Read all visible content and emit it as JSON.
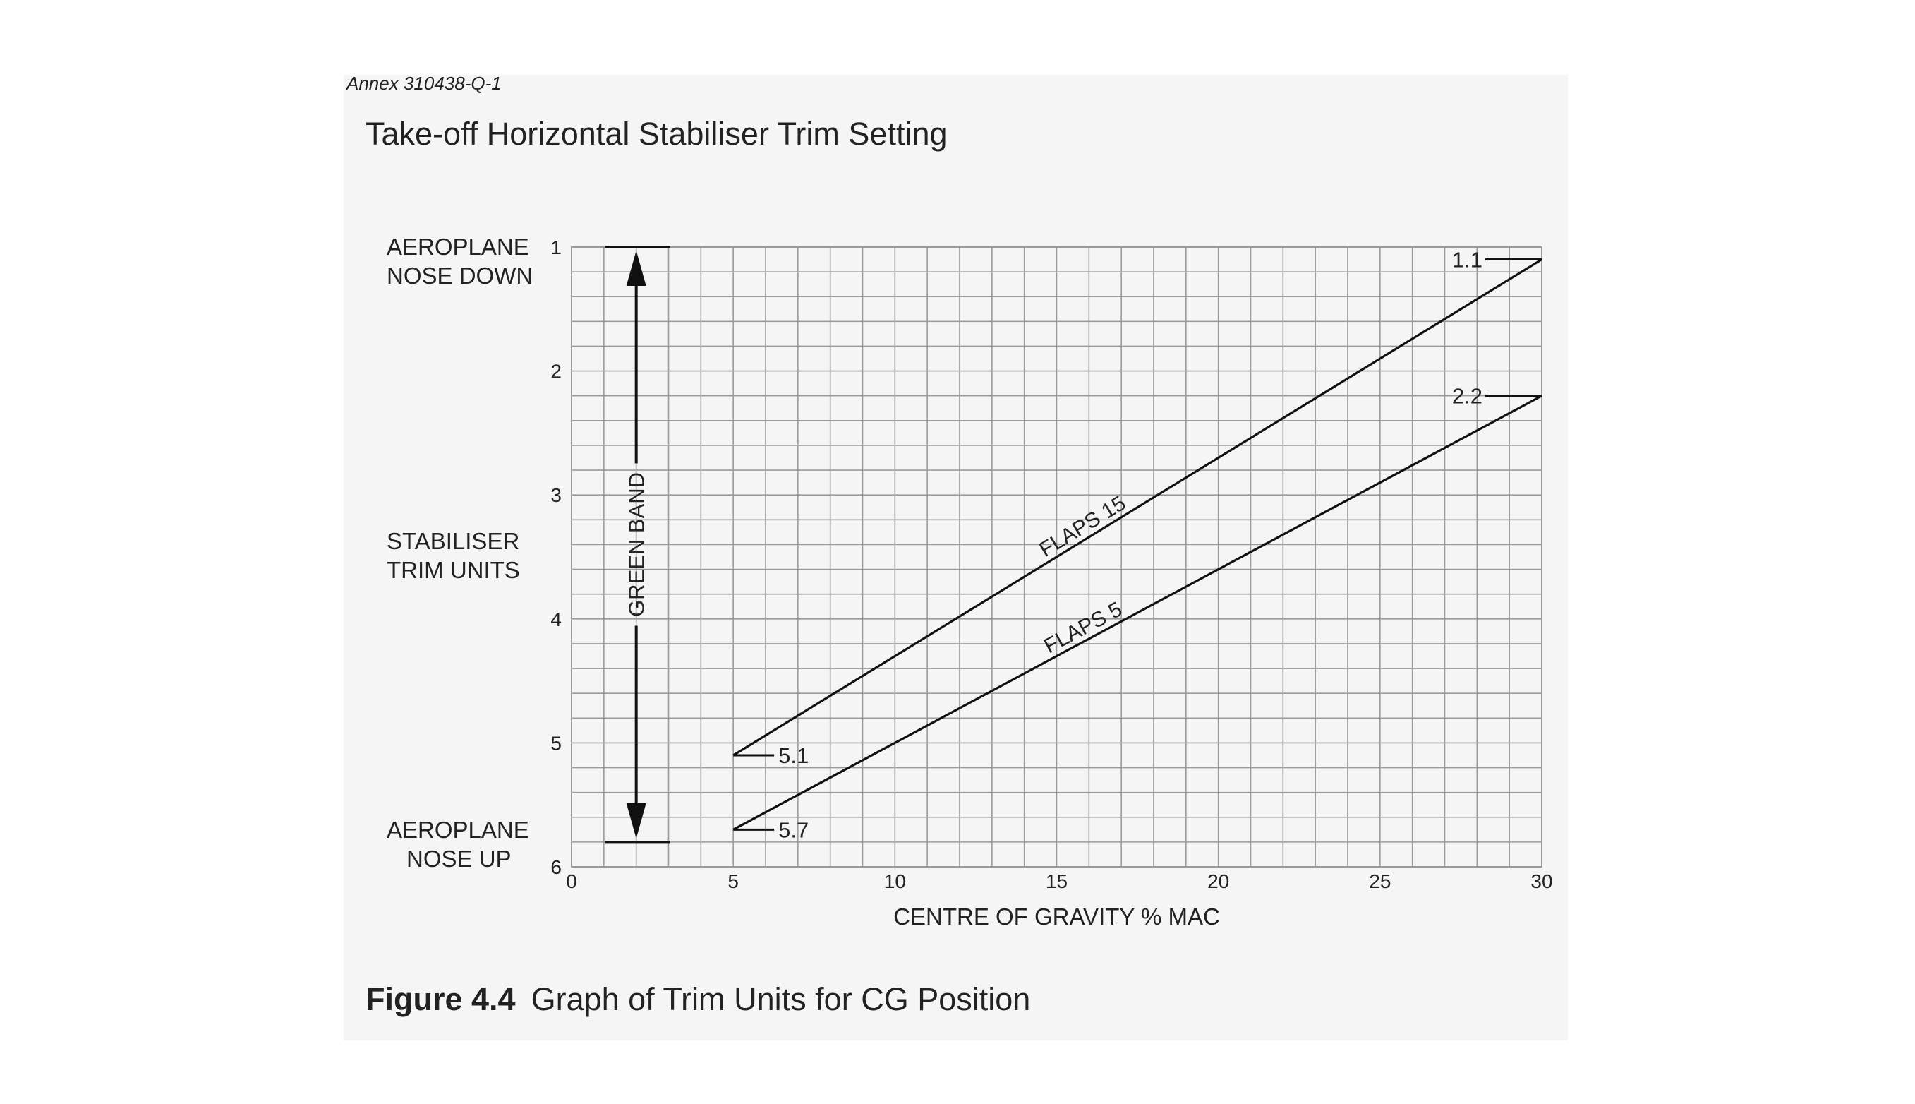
{
  "annex": "Annex 310438-Q-1",
  "title": "Take-off Horizontal Stabiliser Trim Setting",
  "caption": {
    "label": "Figure 4.4",
    "text": "Graph of Trim Units for CG Position"
  },
  "colors": {
    "panel": "#f5f5f5",
    "grid": "#9a9a9a",
    "line": "#111111",
    "text": "#222222"
  },
  "chart_data": {
    "type": "line",
    "title": "Take-off Horizontal Stabiliser Trim Setting",
    "xlabel": "CENTRE OF GRAVITY  % MAC",
    "ylabel": [
      "STABILISER",
      "TRIM UNITS"
    ],
    "top_label": [
      "AEROPLANE",
      "NOSE DOWN"
    ],
    "bottom_label": [
      "AEROPLANE",
      "NOSE UP"
    ],
    "xlim": [
      0,
      30
    ],
    "ylim": [
      1,
      6
    ],
    "y_inverted": true,
    "grid": true,
    "xticks": [
      0,
      5,
      10,
      15,
      20,
      25,
      30
    ],
    "yticks": [
      1,
      2,
      3,
      4,
      5,
      6
    ],
    "series": [
      {
        "name": "FLAPS 15",
        "x": [
          5,
          30
        ],
        "y": [
          5.1,
          1.1
        ],
        "start_label": "5.1",
        "end_label": "1.1"
      },
      {
        "name": "FLAPS 5",
        "x": [
          5,
          30
        ],
        "y": [
          5.7,
          2.2
        ],
        "start_label": "5.7",
        "end_label": "2.2"
      }
    ],
    "band": {
      "label": "GREEN BAND",
      "x": 2,
      "y_from": 1,
      "y_to": 5.8
    }
  }
}
